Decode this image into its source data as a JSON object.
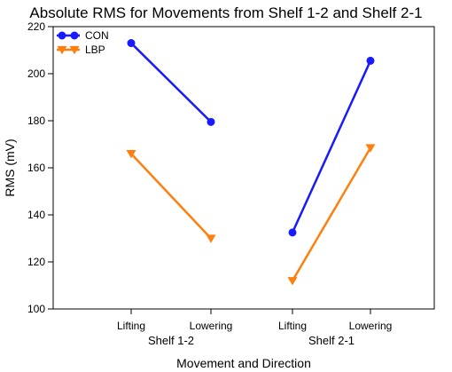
{
  "chart_data": {
    "type": "line",
    "title": "Absolute RMS for Movements from Shelf 1-2 and Shelf 2-1",
    "xlabel": "Movement and Direction",
    "ylabel": "RMS (mV)",
    "ylim": [
      100,
      220
    ],
    "yticks": [
      100,
      120,
      140,
      160,
      180,
      200,
      220
    ],
    "categories": [
      "Lifting",
      "Lowering",
      "Lifting",
      "Lowering"
    ],
    "groups": [
      {
        "label": "Shelf 1-2",
        "categories": [
          0,
          1
        ]
      },
      {
        "label": "Shelf 2-1",
        "categories": [
          2,
          3
        ]
      }
    ],
    "series": [
      {
        "name": "CON",
        "color": "#1a1aff",
        "marker": "circle",
        "values": [
          213,
          179.5,
          132.5,
          205.5
        ]
      },
      {
        "name": "LBP",
        "color": "#ff7f0e",
        "marker": "triangle-down",
        "values": [
          166,
          130,
          112,
          168.5
        ]
      }
    ],
    "legend_position": "top-left",
    "grid": false
  }
}
